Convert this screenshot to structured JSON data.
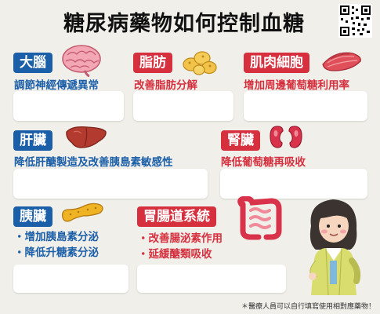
{
  "title": "糖尿病藥物如何控制血糖",
  "qr_code": "qr-code",
  "sections": {
    "brain": {
      "label": "大腦",
      "desc": "調節神經傳遞異常",
      "color": "#1b5fa8"
    },
    "fat": {
      "label": "脂肪",
      "desc": "改善脂肪分解",
      "color": "#d6303e"
    },
    "muscle": {
      "label": "肌肉細胞",
      "desc": "增加周邊葡萄糖利用率",
      "color": "#d6303e"
    },
    "liver": {
      "label": "肝臟",
      "desc": "降低肝醣製造及改善胰島素敏感性",
      "color": "#1b5fa8"
    },
    "kidney": {
      "label": "腎臟",
      "desc": "降低葡萄糖再吸收",
      "color": "#d6303e"
    },
    "pancreas": {
      "label": "胰臟",
      "items": [
        "・增加胰島素分泌",
        "・降低升糖素分泌"
      ],
      "color": "#1b5fa8"
    },
    "gut": {
      "label": "胃腸道系統",
      "items": [
        "・改善腸泌素作用",
        "・延緩醣類吸收"
      ],
      "color": "#d6303e"
    }
  },
  "footnote": "＊醫療人員可以自行填寫使用相對應藥物！"
}
